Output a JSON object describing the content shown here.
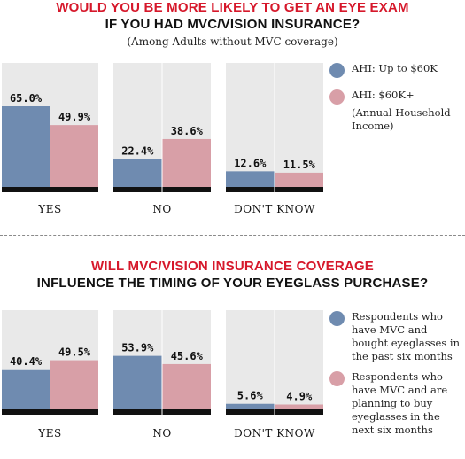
{
  "colors": {
    "series1": "#6f8bb0",
    "series2": "#d89fa7",
    "panel": "#e9e9e9",
    "base": "#111111"
  },
  "chart_data": [
    {
      "type": "bar",
      "title": "WOULD YOU BE MORE LIKELY TO GET AN EYE EXAM",
      "subtitle": "IF YOU HAD MVC/VISION INSURANCE?",
      "note": "(Among Adults without MVC coverage)",
      "categories": [
        "YES",
        "NO",
        "DON'T KNOW"
      ],
      "ylim": [
        0,
        100
      ],
      "series": [
        {
          "name": "AHI: Up to $60K",
          "values": [
            65.0,
            22.4,
            12.6
          ],
          "labels": [
            "65.0%",
            "22.4%",
            "12.6%"
          ]
        },
        {
          "name": "AHI: $60K+",
          "values": [
            49.9,
            38.6,
            11.5
          ],
          "labels": [
            "49.9%",
            "38.6%",
            "11.5%"
          ]
        }
      ],
      "legend_note": "(Annual Household Income)",
      "legend": "right"
    },
    {
      "type": "bar",
      "title": "WILL MVC/VISION INSURANCE COVERAGE",
      "subtitle": "INFLUENCE THE TIMING OF YOUR EYEGLASS PURCHASE?",
      "categories": [
        "YES",
        "NO",
        "DON'T KNOW"
      ],
      "ylim": [
        0,
        100
      ],
      "series": [
        {
          "name": "Respondents who have MVC and bought eyeglasses in the past six months",
          "values": [
            40.4,
            53.9,
            5.6
          ],
          "labels": [
            "40.4%",
            "53.9%",
            "5.6%"
          ]
        },
        {
          "name": "Respondents who have MVC and are planning to buy eyeglasses in the next six months",
          "values": [
            49.5,
            45.6,
            4.9
          ],
          "labels": [
            "49.5%",
            "45.6%",
            "4.9%"
          ]
        }
      ],
      "legend": "right"
    }
  ]
}
